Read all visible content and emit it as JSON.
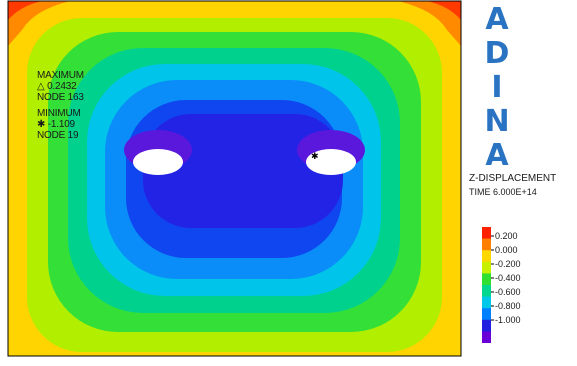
{
  "logo": {
    "letters": [
      "A",
      "D",
      "I",
      "N",
      "A"
    ]
  },
  "result": {
    "field": "Z-DISPLACEMENT",
    "time": "TIME 6.000E+14"
  },
  "maximum": {
    "label": "MAXIMUM",
    "value": "△ 0.2432",
    "node": "NODE 163"
  },
  "minimum": {
    "label": "MINIMUM",
    "value": "✱ -1.109",
    "node": "NODE 19"
  },
  "legend": {
    "ticks": [
      "0.200",
      "0.000",
      "-0.200",
      "-0.400",
      "-0.600",
      "-0.800",
      "-1.000"
    ],
    "colors": [
      "#ff2000",
      "#ff8000",
      "#ffd800",
      "#c8f000",
      "#30e030",
      "#00d890",
      "#00c8e8",
      "#0080ff",
      "#2020e0",
      "#6a00d8"
    ]
  }
}
